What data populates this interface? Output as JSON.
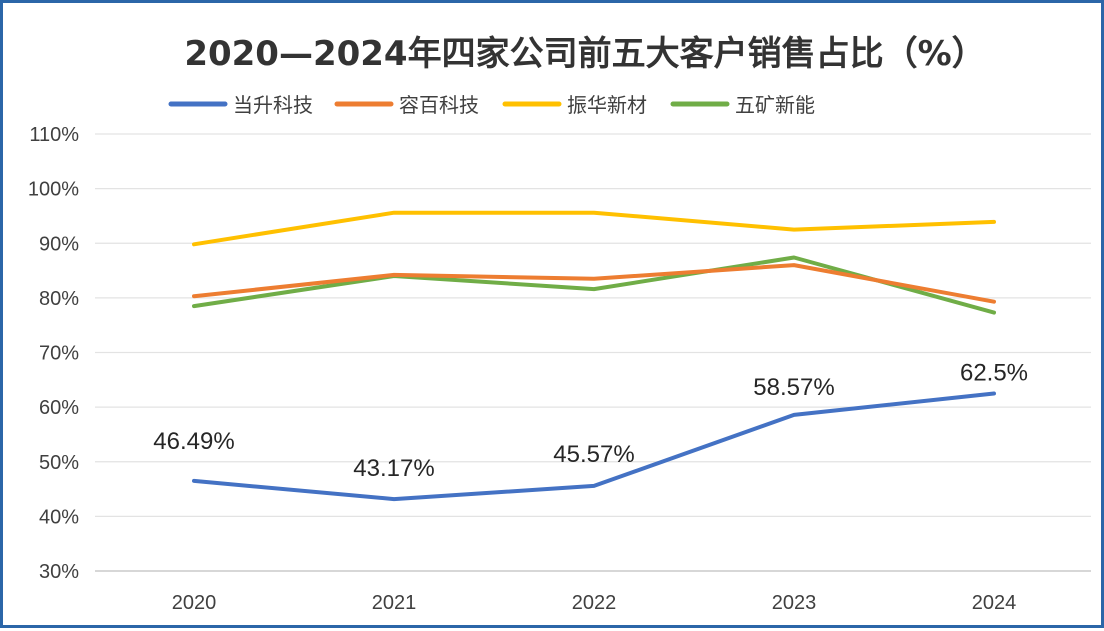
{
  "chart_data": {
    "type": "line",
    "title": "2020—2024年四家公司前五大客户销售占比（%）",
    "xlabel": "",
    "ylabel": "",
    "categories": [
      "2020",
      "2021",
      "2022",
      "2023",
      "2024"
    ],
    "y_ticks": [
      "30%",
      "40%",
      "50%",
      "60%",
      "70%",
      "80%",
      "90%",
      "100%",
      "110%"
    ],
    "ylim": [
      30,
      110
    ],
    "grid": true,
    "legend_position": "top",
    "series": [
      {
        "name": "当升科技",
        "color": "#4472c4",
        "values": [
          46.49,
          43.17,
          45.57,
          58.57,
          62.5
        ],
        "data_labels": [
          "46.49%",
          "43.17%",
          "45.57%",
          "58.57%",
          "62.5%"
        ]
      },
      {
        "name": "容百科技",
        "color": "#ed7d31",
        "values": [
          80.3,
          84.2,
          83.5,
          86.0,
          79.3
        ]
      },
      {
        "name": "振华新材",
        "color": "#ffc000",
        "values": [
          89.8,
          95.6,
          95.6,
          92.5,
          93.9
        ]
      },
      {
        "name": "五矿新能",
        "color": "#70ad47",
        "values": [
          78.5,
          84.0,
          81.6,
          87.4,
          77.3
        ]
      }
    ]
  }
}
